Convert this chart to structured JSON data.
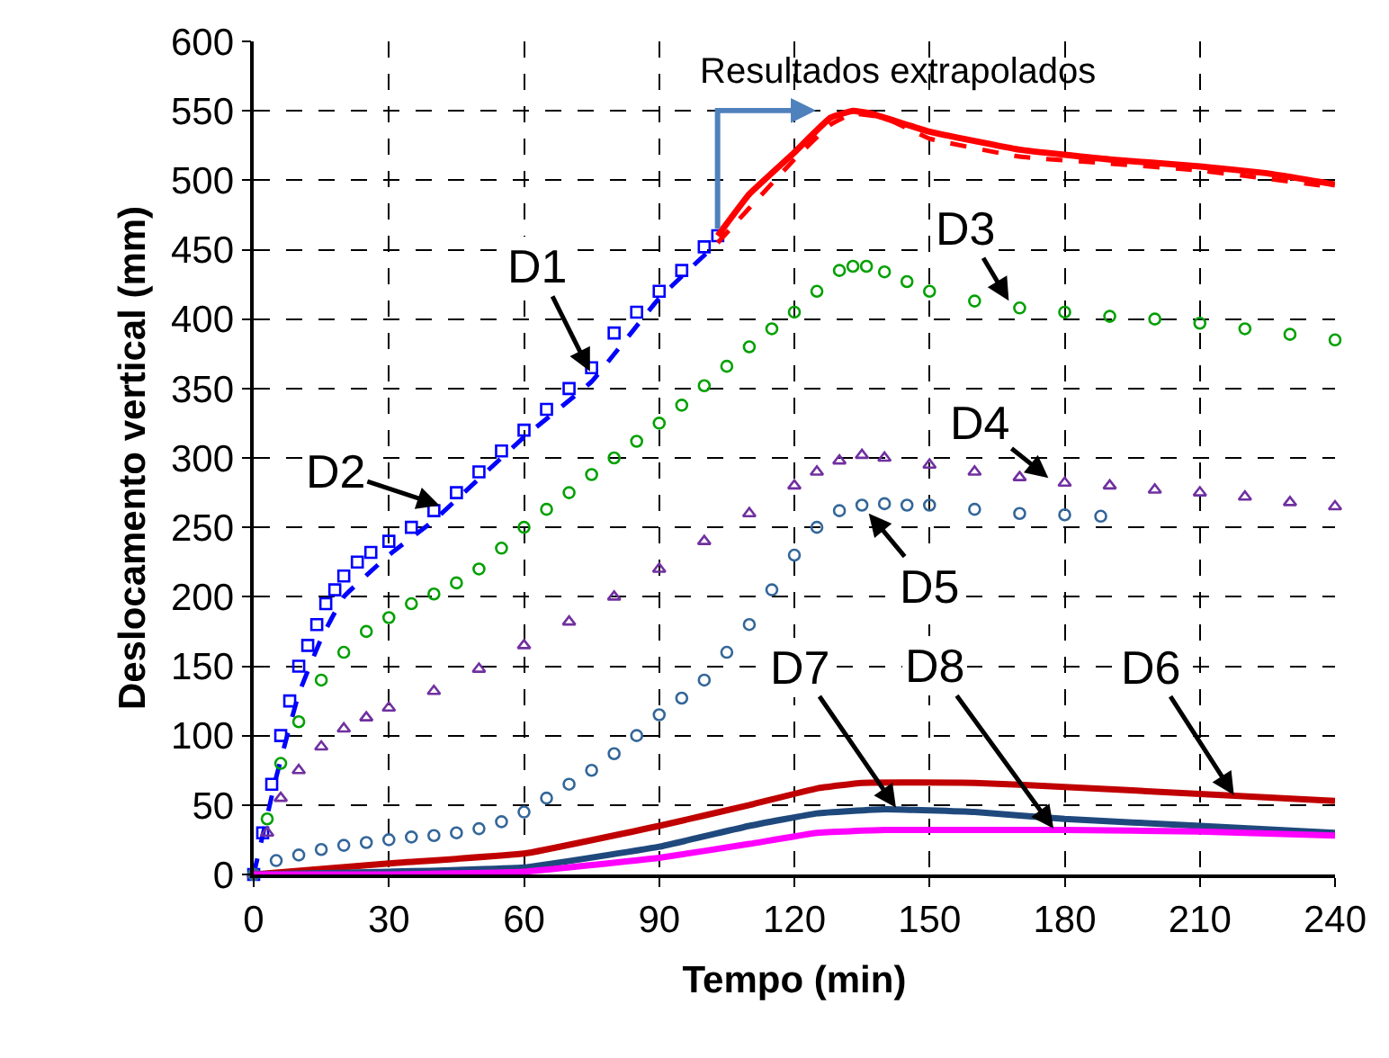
{
  "chart_data": {
    "type": "scatter",
    "xlabel": "Tempo (min)",
    "ylabel": "Deslocamento vertical (mm)",
    "xlim": [
      0,
      240
    ],
    "xticks": [
      0,
      30,
      60,
      90,
      120,
      150,
      180,
      210,
      240
    ],
    "ylim": [
      0,
      600
    ],
    "yticks": [
      0,
      50,
      100,
      150,
      200,
      250,
      300,
      350,
      400,
      450,
      500,
      550,
      600
    ],
    "grid": true,
    "series": [
      {
        "marker": "square",
        "color": "#0000ff",
        "x": [
          0,
          2,
          4,
          6,
          8,
          10,
          12,
          14,
          16,
          18,
          20,
          23,
          26,
          30,
          35,
          40,
          45,
          50,
          55,
          60,
          65,
          70,
          75,
          80,
          85,
          90,
          95,
          100,
          103
        ],
        "values": [
          0,
          30,
          65,
          100,
          125,
          150,
          165,
          180,
          195,
          205,
          215,
          225,
          232,
          240,
          250,
          262,
          275,
          290,
          305,
          320,
          335,
          350,
          365,
          390,
          405,
          420,
          435,
          452,
          460
        ]
      },
      {
        "type": "line",
        "line_style": "dashed",
        "color": "#0000ff",
        "x": [
          0,
          5,
          10,
          15,
          20,
          30,
          40,
          50,
          60,
          75,
          90,
          103
        ],
        "values": [
          0,
          70,
          130,
          170,
          200,
          230,
          255,
          285,
          315,
          355,
          415,
          455
        ]
      },
      {
        "type": "line",
        "line_style": "solid",
        "color": "#ff0000",
        "x": [
          103,
          110,
          120,
          128,
          133,
          137,
          150,
          170,
          190,
          210,
          225,
          240
        ],
        "values": [
          460,
          490,
          520,
          545,
          550,
          548,
          535,
          522,
          515,
          510,
          505,
          497
        ]
      },
      {
        "type": "line",
        "line_style": "dashed",
        "color": "#ff0000",
        "x": [
          103,
          110,
          120,
          128,
          133,
          140,
          150,
          170,
          190,
          210,
          240
        ],
        "values": [
          455,
          480,
          515,
          540,
          548,
          545,
          530,
          517,
          512,
          507,
          495
        ]
      },
      {
        "marker": "circle",
        "color": "#00a000",
        "x": [
          0,
          3,
          6,
          10,
          15,
          20,
          25,
          30,
          35,
          40,
          45,
          50,
          55,
          60,
          65,
          70,
          75,
          80,
          85,
          90,
          95,
          100,
          105,
          110,
          115,
          120,
          125,
          130,
          133,
          136,
          140,
          145,
          150,
          160,
          170,
          180,
          190,
          200,
          210,
          220,
          230,
          240
        ],
        "values": [
          0,
          40,
          80,
          110,
          140,
          160,
          175,
          185,
          195,
          202,
          210,
          220,
          235,
          250,
          263,
          275,
          288,
          300,
          312,
          325,
          338,
          352,
          366,
          380,
          393,
          405,
          420,
          435,
          438,
          438,
          434,
          427,
          420,
          413,
          408,
          405,
          402,
          400,
          397,
          393,
          389,
          385
        ]
      },
      {
        "marker": "triangle",
        "color": "#7030a0",
        "x": [
          0,
          3,
          6,
          10,
          15,
          20,
          25,
          30,
          40,
          50,
          60,
          70,
          80,
          90,
          100,
          110,
          120,
          125,
          130,
          135,
          140,
          150,
          160,
          170,
          180,
          190,
          200,
          210,
          220,
          230,
          240
        ],
        "values": [
          0,
          30,
          55,
          75,
          92,
          105,
          113,
          120,
          132,
          148,
          165,
          182,
          200,
          220,
          240,
          260,
          280,
          290,
          298,
          302,
          300,
          295,
          290,
          286,
          282,
          280,
          277,
          275,
          272,
          268,
          265
        ]
      },
      {
        "marker": "circle",
        "color": "#336699",
        "x": [
          0,
          5,
          10,
          15,
          20,
          25,
          30,
          35,
          40,
          45,
          50,
          55,
          60,
          65,
          70,
          75,
          80,
          85,
          90,
          95,
          100,
          105,
          110,
          115,
          120,
          125,
          130,
          135,
          140,
          145,
          150,
          160,
          170,
          180,
          188
        ],
        "values": [
          0,
          10,
          14,
          18,
          21,
          23,
          25,
          27,
          28,
          30,
          33,
          38,
          45,
          55,
          65,
          75,
          87,
          100,
          115,
          127,
          140,
          160,
          180,
          205,
          230,
          250,
          262,
          266,
          267,
          266,
          266,
          263,
          260,
          259,
          258
        ]
      },
      {
        "type": "line",
        "line_style": "solid",
        "color": "#c00000",
        "x": [
          0,
          30,
          60,
          90,
          110,
          125,
          135,
          160,
          180,
          210,
          240
        ],
        "values": [
          0,
          8,
          15,
          35,
          50,
          62,
          66,
          66,
          63,
          58,
          53
        ]
      },
      {
        "type": "line",
        "line_style": "solid",
        "color": "#1f497d",
        "x": [
          0,
          30,
          60,
          90,
          110,
          125,
          140,
          160,
          180,
          210,
          240
        ],
        "values": [
          0,
          2,
          5,
          20,
          35,
          44,
          47,
          45,
          40,
          35,
          30
        ]
      },
      {
        "type": "line",
        "line_style": "solid",
        "color": "#ff00ff",
        "x": [
          0,
          30,
          60,
          90,
          110,
          125,
          140,
          180,
          210,
          240
        ],
        "values": [
          0,
          0,
          2,
          12,
          22,
          30,
          32,
          32,
          31,
          28
        ]
      }
    ],
    "annotations": [
      {
        "text": "D1",
        "x": 75,
        "y": 360
      },
      {
        "text": "D2",
        "x": 42,
        "y": 265
      },
      {
        "text": "D3",
        "x": 168,
        "y": 411
      },
      {
        "text": "D4",
        "x": 177,
        "y": 284
      },
      {
        "text": "D5",
        "x": 136,
        "y": 262
      },
      {
        "text": "D7",
        "x": 143,
        "y": 46
      },
      {
        "text": "D8",
        "x": 178,
        "y": 31
      },
      {
        "text": "D6",
        "x": 218,
        "y": 55
      },
      "Resultados extrapolados"
    ]
  }
}
